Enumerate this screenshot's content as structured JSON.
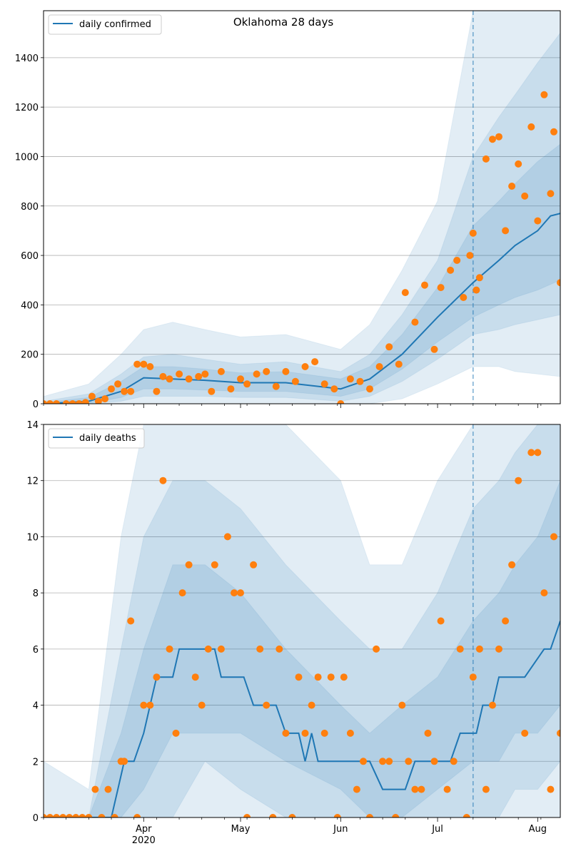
{
  "chart_data": [
    {
      "type": "line",
      "title": "Oklahoma 28 days",
      "series_name": "daily confirmed",
      "x_tick_labels": [
        "Apr",
        "May",
        "Jun",
        "Jul",
        "Aug"
      ],
      "x_year_label": "2020",
      "x_range": [
        "2020-03-01",
        "2020-08-08"
      ],
      "forecast_start": "2020-07-12",
      "ylim": [
        0,
        1590
      ],
      "y_ticks": [
        0,
        200,
        400,
        600,
        800,
        1000,
        1200,
        1400
      ],
      "grid": "horizontal",
      "legend_position": "top-left",
      "colors": {
        "line": "#1f77b4",
        "points": "#ff7f0e",
        "band": "#1f77b4"
      },
      "trend": {
        "x": [
          "2020-03-01",
          "2020-03-15",
          "2020-03-25",
          "2020-04-01",
          "2020-04-10",
          "2020-04-20",
          "2020-05-01",
          "2020-05-15",
          "2020-06-01",
          "2020-06-10",
          "2020-06-20",
          "2020-07-01",
          "2020-07-12",
          "2020-07-20",
          "2020-07-25",
          "2020-08-01",
          "2020-08-05",
          "2020-08-08"
        ],
        "values": [
          0,
          10,
          50,
          105,
          100,
          95,
          85,
          85,
          60,
          100,
          200,
          350,
          490,
          580,
          640,
          700,
          760,
          770
        ]
      },
      "bands": [
        {
          "x": [
            "2020-03-01",
            "2020-03-15",
            "2020-03-25",
            "2020-04-01",
            "2020-04-10",
            "2020-04-20",
            "2020-05-01",
            "2020-05-15",
            "2020-06-01",
            "2020-06-10",
            "2020-06-20",
            "2020-07-01",
            "2020-07-12",
            "2020-07-20",
            "2020-07-25",
            "2020-08-01",
            "2020-08-08"
          ],
          "lower": [
            0,
            0,
            0,
            0,
            0,
            0,
            0,
            0,
            0,
            0,
            20,
            80,
            150,
            150,
            130,
            120,
            110
          ],
          "upper": [
            30,
            80,
            200,
            300,
            330,
            300,
            270,
            280,
            220,
            320,
            540,
            820,
            1590,
            1590,
            1590,
            1590,
            1590
          ]
        },
        {
          "x": [
            "2020-03-01",
            "2020-03-15",
            "2020-03-25",
            "2020-04-01",
            "2020-04-10",
            "2020-04-20",
            "2020-05-01",
            "2020-05-15",
            "2020-06-01",
            "2020-06-10",
            "2020-06-20",
            "2020-07-01",
            "2020-07-12",
            "2020-07-20",
            "2020-07-25",
            "2020-08-01",
            "2020-08-08"
          ],
          "lower": [
            0,
            0,
            10,
            30,
            30,
            30,
            25,
            25,
            10,
            30,
            90,
            180,
            280,
            300,
            320,
            340,
            360
          ],
          "upper": [
            10,
            40,
            120,
            190,
            200,
            180,
            160,
            170,
            130,
            200,
            360,
            580,
            1000,
            1160,
            1250,
            1380,
            1500
          ]
        },
        {
          "x": [
            "2020-03-01",
            "2020-03-15",
            "2020-03-25",
            "2020-04-01",
            "2020-04-10",
            "2020-04-20",
            "2020-05-01",
            "2020-05-15",
            "2020-06-01",
            "2020-06-10",
            "2020-06-20",
            "2020-07-01",
            "2020-07-12",
            "2020-07-20",
            "2020-07-25",
            "2020-08-01",
            "2020-08-08"
          ],
          "lower": [
            0,
            2,
            25,
            60,
            60,
            55,
            50,
            50,
            30,
            60,
            140,
            250,
            350,
            400,
            430,
            460,
            500
          ],
          "upper": [
            5,
            25,
            90,
            150,
            150,
            140,
            125,
            130,
            100,
            150,
            280,
            470,
            720,
            820,
            890,
            980,
            1050
          ]
        }
      ],
      "points": {
        "x": [
          "2020-03-01",
          "2020-03-03",
          "2020-03-05",
          "2020-03-08",
          "2020-03-10",
          "2020-03-12",
          "2020-03-14",
          "2020-03-16",
          "2020-03-18",
          "2020-03-20",
          "2020-03-22",
          "2020-03-24",
          "2020-03-26",
          "2020-03-28",
          "2020-03-30",
          "2020-04-01",
          "2020-04-03",
          "2020-04-05",
          "2020-04-07",
          "2020-04-09",
          "2020-04-12",
          "2020-04-15",
          "2020-04-18",
          "2020-04-20",
          "2020-04-22",
          "2020-04-25",
          "2020-04-28",
          "2020-05-01",
          "2020-05-03",
          "2020-05-06",
          "2020-05-09",
          "2020-05-12",
          "2020-05-15",
          "2020-05-18",
          "2020-05-21",
          "2020-05-24",
          "2020-05-27",
          "2020-05-30",
          "2020-06-01",
          "2020-06-04",
          "2020-06-07",
          "2020-06-10",
          "2020-06-13",
          "2020-06-16",
          "2020-06-19",
          "2020-06-21",
          "2020-06-24",
          "2020-06-27",
          "2020-06-30",
          "2020-07-02",
          "2020-07-05",
          "2020-07-07",
          "2020-07-09",
          "2020-07-11",
          "2020-07-12",
          "2020-07-13",
          "2020-07-14",
          "2020-07-16",
          "2020-07-18",
          "2020-07-20",
          "2020-07-22",
          "2020-07-24",
          "2020-07-26",
          "2020-07-28",
          "2020-07-30",
          "2020-08-01",
          "2020-08-03",
          "2020-08-05",
          "2020-08-06",
          "2020-08-08"
        ],
        "values": [
          0,
          0,
          0,
          0,
          0,
          0,
          5,
          30,
          10,
          20,
          60,
          80,
          50,
          50,
          160,
          160,
          150,
          50,
          110,
          100,
          120,
          100,
          110,
          120,
          50,
          130,
          60,
          100,
          80,
          120,
          130,
          70,
          130,
          90,
          150,
          170,
          80,
          60,
          0,
          100,
          90,
          60,
          150,
          230,
          160,
          450,
          330,
          480,
          220,
          470,
          540,
          580,
          430,
          600,
          690,
          460,
          510,
          990,
          1070,
          1080,
          700,
          880,
          970,
          840,
          1120,
          740,
          1250,
          850,
          1100,
          490
        ]
      }
    },
    {
      "type": "line",
      "title": "",
      "series_name": "daily deaths",
      "x_tick_labels": [
        "Apr",
        "May",
        "Jun",
        "Jul",
        "Aug"
      ],
      "x_year_label": "2020",
      "x_range": [
        "2020-03-01",
        "2020-08-08"
      ],
      "forecast_start": "2020-07-12",
      "ylim": [
        0,
        14
      ],
      "y_ticks": [
        0,
        2,
        4,
        6,
        8,
        10,
        12,
        14
      ],
      "grid": "horizontal",
      "legend_position": "top-left",
      "colors": {
        "line": "#1f77b4",
        "points": "#ff7f0e",
        "band": "#1f77b4"
      },
      "trend": {
        "x": [
          "2020-03-01",
          "2020-03-22",
          "2020-03-24",
          "2020-03-26",
          "2020-03-29",
          "2020-04-01",
          "2020-04-03",
          "2020-04-05",
          "2020-04-08",
          "2020-04-10",
          "2020-04-12",
          "2020-04-15",
          "2020-04-20",
          "2020-04-23",
          "2020-04-25",
          "2020-04-30",
          "2020-05-02",
          "2020-05-05",
          "2020-05-08",
          "2020-05-12",
          "2020-05-15",
          "2020-05-19",
          "2020-05-21",
          "2020-05-23",
          "2020-05-25",
          "2020-05-31",
          "2020-06-03",
          "2020-06-05",
          "2020-06-08",
          "2020-06-10",
          "2020-06-14",
          "2020-06-15",
          "2020-06-17",
          "2020-06-21",
          "2020-06-24",
          "2020-06-27",
          "2020-07-01",
          "2020-07-05",
          "2020-07-08",
          "2020-07-11",
          "2020-07-12",
          "2020-07-13",
          "2020-07-15",
          "2020-07-18",
          "2020-07-20",
          "2020-07-23",
          "2020-07-28",
          "2020-08-03",
          "2020-08-05",
          "2020-08-08"
        ],
        "values": [
          0,
          0,
          1,
          2,
          2,
          3,
          4,
          5,
          5,
          5,
          6,
          6,
          6,
          6,
          5,
          5,
          5,
          4,
          4,
          4,
          3,
          3,
          2,
          3,
          2,
          2,
          2,
          2,
          2,
          2,
          1,
          1,
          1,
          1,
          2,
          2,
          2,
          2,
          3,
          3,
          3,
          3,
          4,
          4,
          5,
          5,
          5,
          6,
          6,
          7
        ]
      },
      "bands": [
        {
          "x": [
            "2020-03-01",
            "2020-03-15",
            "2020-03-25",
            "2020-04-01",
            "2020-04-10",
            "2020-04-20",
            "2020-05-01",
            "2020-05-15",
            "2020-06-01",
            "2020-06-10",
            "2020-06-20",
            "2020-07-01",
            "2020-07-12",
            "2020-07-20",
            "2020-07-25",
            "2020-08-01",
            "2020-08-08"
          ],
          "lower": [
            0,
            0,
            0,
            0,
            0,
            0,
            0,
            0,
            0,
            0,
            0,
            0,
            0,
            0,
            0,
            0,
            0
          ],
          "upper": [
            2,
            1,
            10,
            14,
            14,
            14,
            14,
            14,
            12,
            9,
            9,
            12,
            14,
            14,
            14,
            14,
            14
          ]
        },
        {
          "x": [
            "2020-03-01",
            "2020-03-15",
            "2020-03-25",
            "2020-04-01",
            "2020-04-10",
            "2020-04-20",
            "2020-05-01",
            "2020-05-15",
            "2020-06-01",
            "2020-06-10",
            "2020-06-20",
            "2020-07-01",
            "2020-07-12",
            "2020-07-20",
            "2020-07-25",
            "2020-08-01",
            "2020-08-08"
          ],
          "lower": [
            0,
            0,
            0,
            0,
            0,
            2,
            1,
            0,
            0,
            0,
            0,
            0,
            0,
            0,
            1,
            1,
            2
          ],
          "upper": [
            0,
            0,
            6,
            10,
            12,
            12,
            11,
            9,
            7,
            6,
            6,
            8,
            11,
            12,
            13,
            14,
            14
          ]
        },
        {
          "x": [
            "2020-03-01",
            "2020-03-15",
            "2020-03-25",
            "2020-04-01",
            "2020-04-10",
            "2020-04-20",
            "2020-05-01",
            "2020-05-15",
            "2020-06-01",
            "2020-06-10",
            "2020-06-20",
            "2020-07-01",
            "2020-07-12",
            "2020-07-20",
            "2020-07-25",
            "2020-08-01",
            "2020-08-08"
          ],
          "lower": [
            0,
            0,
            0,
            1,
            3,
            3,
            3,
            2,
            1,
            0,
            0,
            1,
            2,
            2,
            3,
            3,
            4
          ],
          "upper": [
            0,
            0,
            3,
            6,
            9,
            9,
            8,
            6,
            4,
            3,
            4,
            5,
            7,
            8,
            9,
            10,
            12
          ]
        }
      ],
      "points": {
        "x": [
          "2020-03-01",
          "2020-03-03",
          "2020-03-05",
          "2020-03-07",
          "2020-03-09",
          "2020-03-11",
          "2020-03-13",
          "2020-03-15",
          "2020-03-17",
          "2020-03-19",
          "2020-03-21",
          "2020-03-23",
          "2020-03-25",
          "2020-03-26",
          "2020-03-28",
          "2020-03-30",
          "2020-04-01",
          "2020-04-03",
          "2020-04-05",
          "2020-04-07",
          "2020-04-09",
          "2020-04-11",
          "2020-04-13",
          "2020-04-15",
          "2020-04-17",
          "2020-04-19",
          "2020-04-21",
          "2020-04-23",
          "2020-04-25",
          "2020-04-27",
          "2020-04-29",
          "2020-05-01",
          "2020-05-03",
          "2020-05-05",
          "2020-05-07",
          "2020-05-09",
          "2020-05-11",
          "2020-05-13",
          "2020-05-15",
          "2020-05-17",
          "2020-05-19",
          "2020-05-21",
          "2020-05-23",
          "2020-05-25",
          "2020-05-27",
          "2020-05-29",
          "2020-05-31",
          "2020-06-02",
          "2020-06-04",
          "2020-06-06",
          "2020-06-08",
          "2020-06-10",
          "2020-06-12",
          "2020-06-14",
          "2020-06-16",
          "2020-06-18",
          "2020-06-20",
          "2020-06-22",
          "2020-06-24",
          "2020-06-26",
          "2020-06-28",
          "2020-06-30",
          "2020-07-02",
          "2020-07-04",
          "2020-07-06",
          "2020-07-08",
          "2020-07-10",
          "2020-07-12",
          "2020-07-14",
          "2020-07-16",
          "2020-07-18",
          "2020-07-20",
          "2020-07-22",
          "2020-07-24",
          "2020-07-26",
          "2020-07-28",
          "2020-07-30",
          "2020-08-01",
          "2020-08-03",
          "2020-08-05",
          "2020-08-06",
          "2020-08-08"
        ],
        "values": [
          0,
          0,
          0,
          0,
          0,
          0,
          0,
          0,
          1,
          0,
          1,
          0,
          2,
          2,
          7,
          0,
          4,
          4,
          5,
          12,
          6,
          3,
          8,
          9,
          5,
          4,
          6,
          9,
          6,
          10,
          8,
          8,
          0,
          9,
          6,
          4,
          0,
          6,
          3,
          0,
          5,
          3,
          4,
          5,
          3,
          5,
          0,
          5,
          3,
          1,
          2,
          0,
          6,
          2,
          2,
          0,
          4,
          2,
          1,
          1,
          3,
          2,
          7,
          1,
          2,
          6,
          0,
          5,
          6,
          1,
          4,
          6,
          7,
          9,
          12,
          3,
          13,
          13,
          8,
          1,
          10,
          3
        ]
      }
    }
  ]
}
